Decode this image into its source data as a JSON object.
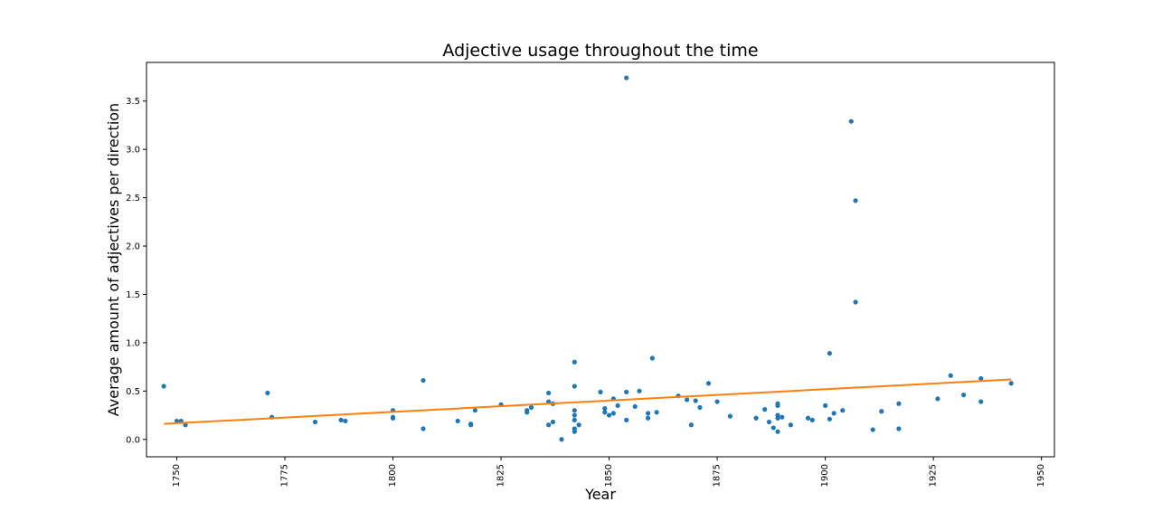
{
  "chart_data": {
    "type": "scatter",
    "title": "Adjective usage throughout the time",
    "xlabel": "Year",
    "ylabel": "Average amount of adjectives per direction",
    "xlim": [
      1743,
      1953
    ],
    "ylim": [
      -0.18,
      3.9
    ],
    "xticks": [
      "1750",
      "1775",
      "1800",
      "1825",
      "1850",
      "1875",
      "1900",
      "1925",
      "1950"
    ],
    "yticks": [
      "0.0",
      "0.5",
      "1.0",
      "1.5",
      "2.0",
      "2.5",
      "3.0",
      "3.5"
    ],
    "grid": false,
    "colors": {
      "points": "#1f77b4",
      "trend": "#ff7f0e"
    },
    "series": [
      {
        "type": "scatter",
        "points": [
          [
            1747,
            0.55
          ],
          [
            1750,
            0.19
          ],
          [
            1751,
            0.19
          ],
          [
            1752,
            0.15
          ],
          [
            1771,
            0.48
          ],
          [
            1772,
            0.23
          ],
          [
            1782,
            0.18
          ],
          [
            1788,
            0.2
          ],
          [
            1789,
            0.19
          ],
          [
            1800,
            0.3
          ],
          [
            1800,
            0.23
          ],
          [
            1800,
            0.22
          ],
          [
            1807,
            0.61
          ],
          [
            1807,
            0.11
          ],
          [
            1815,
            0.19
          ],
          [
            1818,
            0.16
          ],
          [
            1818,
            0.15
          ],
          [
            1819,
            0.3
          ],
          [
            1825,
            0.36
          ],
          [
            1831,
            0.28
          ],
          [
            1831,
            0.3
          ],
          [
            1832,
            0.33
          ],
          [
            1836,
            0.48
          ],
          [
            1836,
            0.39
          ],
          [
            1836,
            0.15
          ],
          [
            1837,
            0.18
          ],
          [
            1837,
            0.37
          ],
          [
            1839,
            0.0
          ],
          [
            1842,
            0.8
          ],
          [
            1842,
            0.55
          ],
          [
            1842,
            0.3
          ],
          [
            1842,
            0.25
          ],
          [
            1842,
            0.2
          ],
          [
            1842,
            0.11
          ],
          [
            1842,
            0.08
          ],
          [
            1843,
            0.15
          ],
          [
            1848,
            0.49
          ],
          [
            1849,
            0.32
          ],
          [
            1849,
            0.28
          ],
          [
            1850,
            0.25
          ],
          [
            1851,
            0.42
          ],
          [
            1851,
            0.27
          ],
          [
            1852,
            0.35
          ],
          [
            1854,
            3.74
          ],
          [
            1854,
            0.49
          ],
          [
            1854,
            0.2
          ],
          [
            1856,
            0.34
          ],
          [
            1857,
            0.5
          ],
          [
            1859,
            0.27
          ],
          [
            1859,
            0.22
          ],
          [
            1860,
            0.84
          ],
          [
            1861,
            0.28
          ],
          [
            1866,
            0.45
          ],
          [
            1868,
            0.41
          ],
          [
            1869,
            0.15
          ],
          [
            1870,
            0.4
          ],
          [
            1871,
            0.33
          ],
          [
            1873,
            0.58
          ],
          [
            1875,
            0.39
          ],
          [
            1878,
            0.24
          ],
          [
            1884,
            0.22
          ],
          [
            1886,
            0.31
          ],
          [
            1887,
            0.18
          ],
          [
            1888,
            0.12
          ],
          [
            1889,
            0.37
          ],
          [
            1889,
            0.35
          ],
          [
            1889,
            0.25
          ],
          [
            1889,
            0.22
          ],
          [
            1889,
            0.08
          ],
          [
            1890,
            0.23
          ],
          [
            1892,
            0.15
          ],
          [
            1896,
            0.22
          ],
          [
            1897,
            0.2
          ],
          [
            1900,
            0.35
          ],
          [
            1901,
            0.89
          ],
          [
            1901,
            0.21
          ],
          [
            1902,
            0.27
          ],
          [
            1904,
            0.3
          ],
          [
            1906,
            3.29
          ],
          [
            1907,
            2.47
          ],
          [
            1907,
            1.42
          ],
          [
            1911,
            0.1
          ],
          [
            1913,
            0.29
          ],
          [
            1917,
            0.37
          ],
          [
            1917,
            0.11
          ],
          [
            1926,
            0.42
          ],
          [
            1929,
            0.66
          ],
          [
            1932,
            0.46
          ],
          [
            1936,
            0.63
          ],
          [
            1936,
            0.39
          ],
          [
            1943,
            0.58
          ]
        ]
      },
      {
        "type": "line",
        "x": [
          1747,
          1943
        ],
        "y": [
          0.16,
          0.62
        ]
      }
    ]
  }
}
